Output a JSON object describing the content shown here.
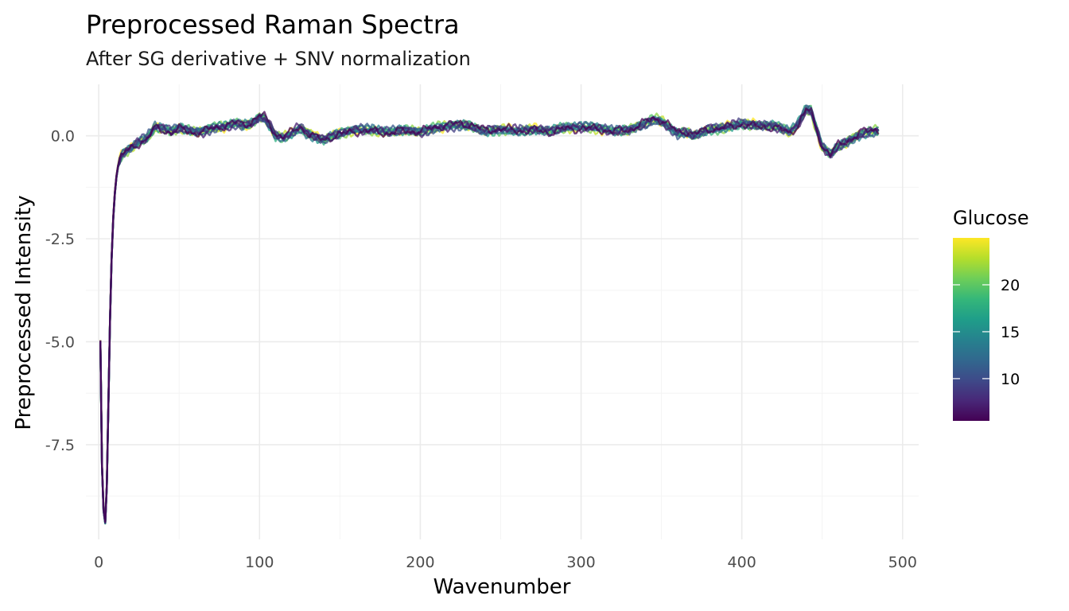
{
  "chart_data": {
    "type": "line",
    "title": "Preprocessed Raman Spectra",
    "subtitle": "After SG derivative + SNV normalization",
    "xlabel": "Wavenumber",
    "ylabel": "Preprocessed Intensity",
    "xlim": [
      -8,
      510
    ],
    "ylim": [
      -9.8,
      1.25
    ],
    "x_ticks": [
      0,
      100,
      200,
      300,
      400,
      500
    ],
    "x_tick_labels": [
      "0",
      "100",
      "200",
      "300",
      "400",
      "500"
    ],
    "y_ticks": [
      0.0,
      -2.5,
      -5.0,
      -7.5
    ],
    "y_tick_labels": [
      "0.0",
      "-2.5",
      "-5.0",
      "-7.5"
    ],
    "grid": true,
    "legend": {
      "title": "Glucose",
      "placement": "right",
      "type": "colorbar",
      "range": [
        5.5,
        25
      ],
      "ticks": [
        10,
        15,
        20
      ],
      "tick_labels": [
        "10",
        "15",
        "20"
      ],
      "colormap": "viridis"
    },
    "colors": {
      "viridis": [
        "#440154",
        "#482878",
        "#3e4a89",
        "#31688e",
        "#26828e",
        "#1f9e89",
        "#35b779",
        "#6ece58",
        "#b5de2b",
        "#fde725"
      ]
    },
    "mean_spectrum": {
      "x": [
        1,
        2,
        3,
        4,
        5,
        6,
        7,
        8,
        9,
        10,
        11,
        12,
        13,
        14,
        15,
        17,
        20,
        25,
        30,
        35,
        40,
        45,
        50,
        55,
        60,
        65,
        70,
        75,
        80,
        85,
        90,
        95,
        100,
        103,
        107,
        110,
        115,
        120,
        125,
        130,
        135,
        140,
        145,
        150,
        160,
        170,
        180,
        190,
        200,
        210,
        220,
        230,
        240,
        250,
        260,
        270,
        280,
        290,
        300,
        310,
        320,
        330,
        340,
        345,
        350,
        355,
        360,
        365,
        370,
        380,
        390,
        400,
        410,
        420,
        430,
        435,
        440,
        443,
        447,
        450,
        455,
        460,
        465,
        470,
        475,
        480,
        485
      ],
      "y": [
        -5.0,
        -8.0,
        -9.1,
        -9.4,
        -8.5,
        -6.5,
        -4.5,
        -3.0,
        -2.0,
        -1.4,
        -1.0,
        -0.75,
        -0.6,
        -0.5,
        -0.45,
        -0.38,
        -0.3,
        -0.15,
        -0.05,
        0.22,
        0.18,
        0.12,
        0.2,
        0.15,
        0.1,
        0.12,
        0.18,
        0.22,
        0.25,
        0.3,
        0.25,
        0.3,
        0.45,
        0.42,
        0.2,
        0.0,
        -0.05,
        0.05,
        0.2,
        0.05,
        -0.05,
        -0.1,
        0.0,
        0.05,
        0.15,
        0.15,
        0.1,
        0.15,
        0.1,
        0.2,
        0.25,
        0.25,
        0.1,
        0.15,
        0.12,
        0.15,
        0.12,
        0.2,
        0.22,
        0.2,
        0.12,
        0.15,
        0.3,
        0.4,
        0.35,
        0.2,
        0.05,
        0.08,
        0.0,
        0.15,
        0.2,
        0.3,
        0.25,
        0.25,
        0.1,
        0.3,
        0.65,
        0.6,
        0.1,
        -0.25,
        -0.45,
        -0.25,
        -0.15,
        -0.05,
        0.05,
        0.1,
        0.12
      ]
    },
    "series_glucose": [
      5.5,
      7.2,
      9.0,
      10.8,
      12.5,
      14.2,
      16.0,
      17.8,
      19.6,
      21.5,
      23.2,
      25.0
    ]
  }
}
